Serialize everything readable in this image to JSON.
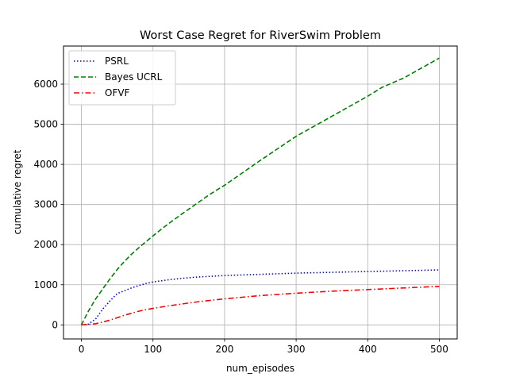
{
  "chart_data": {
    "type": "line",
    "title": "Worst Case Regret for RiverSwim Problem",
    "xlabel": "num_episodes",
    "ylabel": "cumulative regret",
    "xlim": [
      -25,
      525
    ],
    "ylim": [
      -350,
      6950
    ],
    "xticks": [
      0,
      100,
      200,
      300,
      400,
      500
    ],
    "yticks": [
      0,
      1000,
      2000,
      3000,
      4000,
      5000,
      6000
    ],
    "grid": true,
    "legend_position": "top-left",
    "series": [
      {
        "name": "PSRL",
        "color": "#0000ff",
        "style": "dotted",
        "x": [
          0,
          10,
          20,
          30,
          40,
          50,
          60,
          70,
          80,
          90,
          100,
          120,
          140,
          160,
          180,
          200,
          250,
          300,
          350,
          400,
          450,
          500
        ],
        "y": [
          0,
          20,
          150,
          400,
          600,
          780,
          850,
          920,
          980,
          1030,
          1070,
          1120,
          1160,
          1190,
          1210,
          1230,
          1260,
          1290,
          1310,
          1330,
          1350,
          1370
        ]
      },
      {
        "name": "Bayes UCRL",
        "color": "#008000",
        "style": "dashed",
        "x": [
          0,
          10,
          20,
          30,
          40,
          50,
          60,
          70,
          80,
          90,
          100,
          120,
          140,
          160,
          180,
          200,
          250,
          300,
          350,
          400,
          420,
          450,
          500
        ],
        "y": [
          0,
          350,
          650,
          900,
          1150,
          1380,
          1580,
          1760,
          1920,
          2070,
          2220,
          2500,
          2760,
          3010,
          3260,
          3480,
          4100,
          4700,
          5200,
          5700,
          5920,
          6150,
          6650
        ]
      },
      {
        "name": "OFVF",
        "color": "#ff0000",
        "style": "dashdot",
        "x": [
          0,
          10,
          20,
          30,
          40,
          50,
          60,
          70,
          80,
          90,
          100,
          120,
          140,
          160,
          180,
          200,
          250,
          300,
          350,
          400,
          450,
          500
        ],
        "y": [
          0,
          10,
          30,
          70,
          120,
          180,
          240,
          290,
          340,
          380,
          410,
          470,
          520,
          570,
          610,
          650,
          730,
          790,
          840,
          880,
          920,
          960
        ]
      }
    ]
  }
}
